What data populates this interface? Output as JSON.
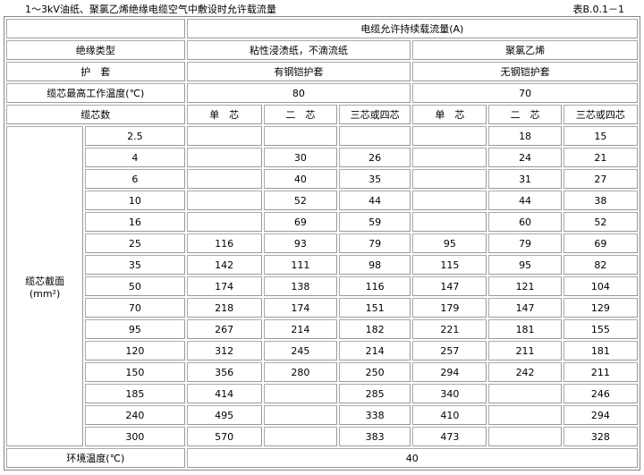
{
  "caption": "1～3kV油纸、聚氯乙烯绝缘电缆空气中敷设时允许载流量",
  "table_no": "表B.0.1－1",
  "header": {
    "ampacity": "电缆允许持续载流量(A)",
    "insulation_label": "绝缘类型",
    "insulation_paper": "粘性浸渍纸，不滴流纸",
    "insulation_pvc": "聚氯乙烯",
    "sheath_label": "护　套",
    "sheath_paper": "有钢铠护套",
    "sheath_pvc": "无钢铠护套",
    "temp_label": "缆芯最高工作温度(℃)",
    "temp_paper": "80",
    "temp_pvc": "70",
    "cores_label": "缆芯数",
    "cores": [
      "单　芯",
      "二　芯",
      "三芯或四芯",
      "单　芯",
      "二　芯",
      "三芯或四芯"
    ]
  },
  "section_label": "缆芯截面",
  "section_unit": "(mm²)",
  "rows": [
    {
      "size": "2.5",
      "values": [
        "",
        "",
        "",
        "",
        "18",
        "15"
      ]
    },
    {
      "size": "4",
      "values": [
        "",
        "30",
        "26",
        "",
        "24",
        "21"
      ]
    },
    {
      "size": "6",
      "values": [
        "",
        "40",
        "35",
        "",
        "31",
        "27"
      ]
    },
    {
      "size": "10",
      "values": [
        "",
        "52",
        "44",
        "",
        "44",
        "38"
      ]
    },
    {
      "size": "16",
      "values": [
        "",
        "69",
        "59",
        "",
        "60",
        "52"
      ]
    },
    {
      "size": "25",
      "values": [
        "116",
        "93",
        "79",
        "95",
        "79",
        "69"
      ]
    },
    {
      "size": "35",
      "values": [
        "142",
        "111",
        "98",
        "115",
        "95",
        "82"
      ]
    },
    {
      "size": "50",
      "values": [
        "174",
        "138",
        "116",
        "147",
        "121",
        "104"
      ]
    },
    {
      "size": "70",
      "values": [
        "218",
        "174",
        "151",
        "179",
        "147",
        "129"
      ]
    },
    {
      "size": "95",
      "values": [
        "267",
        "214",
        "182",
        "221",
        "181",
        "155"
      ]
    },
    {
      "size": "120",
      "values": [
        "312",
        "245",
        "214",
        "257",
        "211",
        "181"
      ]
    },
    {
      "size": "150",
      "values": [
        "356",
        "280",
        "250",
        "294",
        "242",
        "211"
      ]
    },
    {
      "size": "185",
      "values": [
        "414",
        "",
        "285",
        "340",
        "",
        "246"
      ]
    },
    {
      "size": "240",
      "values": [
        "495",
        "",
        "338",
        "410",
        "",
        "294"
      ]
    },
    {
      "size": "300",
      "values": [
        "570",
        "",
        "383",
        "473",
        "",
        "328"
      ]
    }
  ],
  "ambient_label": "环境温度(℃)",
  "ambient_value": "40"
}
